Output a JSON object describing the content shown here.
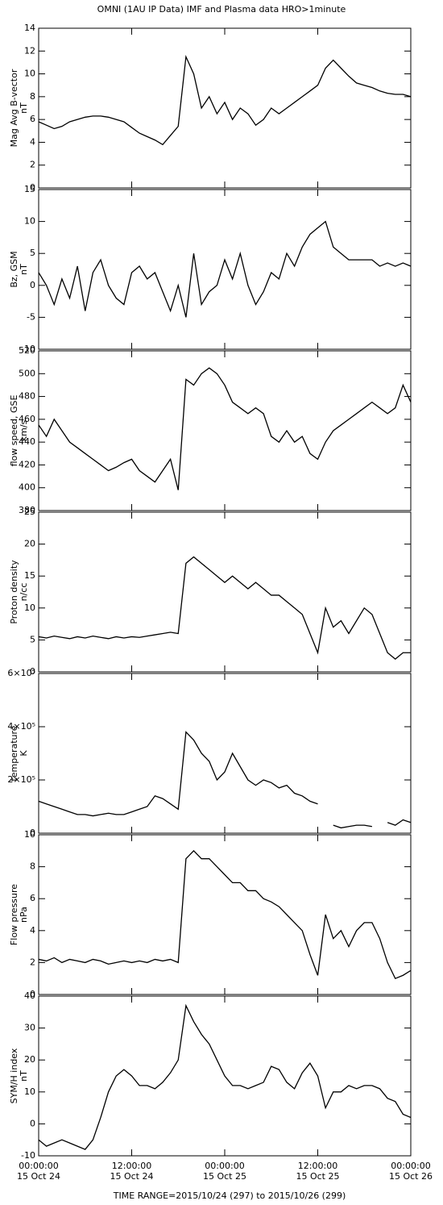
{
  "title": "OMNI (1AU IP Data)  IMF and Plasma data  HRO>1minute",
  "footnote": "TIME RANGE=2015/10/24 (297) to 2015/10/26 (299)",
  "chart_data": [
    {
      "type": "line",
      "ylabel": [
        "Mag Avg B-vector",
        "nT"
      ],
      "color": "#000000",
      "x": [
        "2015-10-24T00:00",
        "2015-10-24T01:00",
        "2015-10-24T02:00",
        "2015-10-24T03:00",
        "2015-10-24T04:00",
        "2015-10-24T05:00",
        "2015-10-24T06:00",
        "2015-10-24T07:00",
        "2015-10-24T08:00",
        "2015-10-24T09:00",
        "2015-10-24T10:00",
        "2015-10-24T11:00",
        "2015-10-24T12:00",
        "2015-10-24T13:00",
        "2015-10-24T14:00",
        "2015-10-24T15:00",
        "2015-10-24T16:00",
        "2015-10-24T17:00",
        "2015-10-24T18:00",
        "2015-10-24T19:00",
        "2015-10-24T20:00",
        "2015-10-24T21:00",
        "2015-10-24T22:00",
        "2015-10-24T23:00",
        "2015-10-25T00:00",
        "2015-10-25T01:00",
        "2015-10-25T02:00",
        "2015-10-25T03:00",
        "2015-10-25T04:00",
        "2015-10-25T05:00",
        "2015-10-25T06:00",
        "2015-10-25T07:00",
        "2015-10-25T08:00",
        "2015-10-25T09:00",
        "2015-10-25T10:00",
        "2015-10-25T11:00",
        "2015-10-25T12:00",
        "2015-10-25T13:00",
        "2015-10-25T14:00",
        "2015-10-25T15:00",
        "2015-10-25T16:00",
        "2015-10-25T17:00",
        "2015-10-25T18:00",
        "2015-10-25T19:00",
        "2015-10-25T20:00",
        "2015-10-25T21:00",
        "2015-10-25T22:00",
        "2015-10-25T23:00",
        "2015-10-26T00:00"
      ],
      "values": [
        5.8,
        5.5,
        5.2,
        5.4,
        5.8,
        6.0,
        6.2,
        6.3,
        6.3,
        6.2,
        6.0,
        5.8,
        5.3,
        4.8,
        4.5,
        4.2,
        3.8,
        4.6,
        5.4,
        11.5,
        10.0,
        7.0,
        8.0,
        6.5,
        7.5,
        6.0,
        7.0,
        6.5,
        5.5,
        6.0,
        7.0,
        6.5,
        7.0,
        7.5,
        8.0,
        8.5,
        9.0,
        10.5,
        11.2,
        10.5,
        9.8,
        9.2,
        9.0,
        8.8,
        8.5,
        8.3,
        8.2,
        8.2,
        8.0
      ],
      "xlim": [
        "2015-10-24T00:00",
        "2015-10-26T00:00"
      ],
      "xticks": [
        "2015-10-24T00:00",
        "2015-10-24T12:00",
        "2015-10-25T00:00",
        "2015-10-25T12:00",
        "2015-10-26T00:00"
      ],
      "ylim": [
        0,
        14
      ],
      "yticks": [
        0,
        2,
        4,
        6,
        8,
        10,
        12,
        14
      ]
    },
    {
      "type": "line",
      "ylabel": [
        "Bz, GSM",
        "nT"
      ],
      "color": "#000000",
      "x": [
        "2015-10-24T00:00",
        "2015-10-24T01:00",
        "2015-10-24T02:00",
        "2015-10-24T03:00",
        "2015-10-24T04:00",
        "2015-10-24T05:00",
        "2015-10-24T06:00",
        "2015-10-24T07:00",
        "2015-10-24T08:00",
        "2015-10-24T09:00",
        "2015-10-24T10:00",
        "2015-10-24T11:00",
        "2015-10-24T12:00",
        "2015-10-24T13:00",
        "2015-10-24T14:00",
        "2015-10-24T15:00",
        "2015-10-24T16:00",
        "2015-10-24T17:00",
        "2015-10-24T18:00",
        "2015-10-24T19:00",
        "2015-10-24T20:00",
        "2015-10-24T21:00",
        "2015-10-24T22:00",
        "2015-10-24T23:00",
        "2015-10-25T00:00",
        "2015-10-25T01:00",
        "2015-10-25T02:00",
        "2015-10-25T03:00",
        "2015-10-25T04:00",
        "2015-10-25T05:00",
        "2015-10-25T06:00",
        "2015-10-25T07:00",
        "2015-10-25T08:00",
        "2015-10-25T09:00",
        "2015-10-25T10:00",
        "2015-10-25T11:00",
        "2015-10-25T12:00",
        "2015-10-25T13:00",
        "2015-10-25T14:00",
        "2015-10-25T15:00",
        "2015-10-25T16:00",
        "2015-10-25T17:00",
        "2015-10-25T18:00",
        "2015-10-25T19:00",
        "2015-10-25T20:00",
        "2015-10-25T21:00",
        "2015-10-25T22:00",
        "2015-10-25T23:00",
        "2015-10-26T00:00"
      ],
      "values": [
        2,
        0,
        -3,
        1,
        -2,
        3,
        -4,
        2,
        4,
        0,
        -2,
        -3,
        2,
        3,
        1,
        2,
        -1,
        -4,
        0,
        -5,
        5,
        -3,
        -1,
        0,
        4,
        1,
        5,
        0,
        -3,
        -1,
        2,
        1,
        5,
        3,
        6,
        8,
        9,
        10,
        6,
        5,
        4,
        4,
        4,
        4,
        3,
        3.5,
        3,
        3.5,
        3
      ],
      "xlim": [
        "2015-10-24T00:00",
        "2015-10-26T00:00"
      ],
      "xticks": [
        "2015-10-24T00:00",
        "2015-10-24T12:00",
        "2015-10-25T00:00",
        "2015-10-25T12:00",
        "2015-10-26T00:00"
      ],
      "ylim": [
        -10,
        15
      ],
      "yticks": [
        -10,
        -5,
        0,
        5,
        10,
        15
      ]
    },
    {
      "type": "line",
      "ylabel": [
        "flow speed, GSE",
        "km/s"
      ],
      "color": "#000000",
      "x": [
        "2015-10-24T00:00",
        "2015-10-24T01:00",
        "2015-10-24T02:00",
        "2015-10-24T03:00",
        "2015-10-24T04:00",
        "2015-10-24T05:00",
        "2015-10-24T06:00",
        "2015-10-24T07:00",
        "2015-10-24T08:00",
        "2015-10-24T09:00",
        "2015-10-24T10:00",
        "2015-10-24T11:00",
        "2015-10-24T12:00",
        "2015-10-24T13:00",
        "2015-10-24T14:00",
        "2015-10-24T15:00",
        "2015-10-24T16:00",
        "2015-10-24T17:00",
        "2015-10-24T18:00",
        "2015-10-24T19:00",
        "2015-10-24T20:00",
        "2015-10-24T21:00",
        "2015-10-24T22:00",
        "2015-10-24T23:00",
        "2015-10-25T00:00",
        "2015-10-25T01:00",
        "2015-10-25T02:00",
        "2015-10-25T03:00",
        "2015-10-25T04:00",
        "2015-10-25T05:00",
        "2015-10-25T06:00",
        "2015-10-25T07:00",
        "2015-10-25T08:00",
        "2015-10-25T09:00",
        "2015-10-25T10:00",
        "2015-10-25T11:00",
        "2015-10-25T12:00",
        "2015-10-25T13:00",
        "2015-10-25T14:00",
        "2015-10-25T15:00",
        "2015-10-25T16:00",
        "2015-10-25T17:00",
        "2015-10-25T18:00",
        "2015-10-25T19:00",
        "2015-10-25T20:00",
        "2015-10-25T21:00",
        "2015-10-25T22:00",
        "2015-10-25T23:00",
        "2015-10-26T00:00"
      ],
      "values": [
        455,
        445,
        460,
        450,
        440,
        435,
        430,
        425,
        420,
        415,
        418,
        422,
        425,
        415,
        410,
        405,
        415,
        425,
        398,
        495,
        490,
        500,
        505,
        500,
        490,
        475,
        470,
        465,
        470,
        465,
        445,
        440,
        450,
        440,
        445,
        430,
        425,
        440,
        450,
        455,
        460,
        465,
        470,
        475,
        470,
        465,
        470,
        490,
        475
      ],
      "xlim": [
        "2015-10-24T00:00",
        "2015-10-26T00:00"
      ],
      "xticks": [
        "2015-10-24T00:00",
        "2015-10-24T12:00",
        "2015-10-25T00:00",
        "2015-10-25T12:00",
        "2015-10-26T00:00"
      ],
      "ylim": [
        380,
        520
      ],
      "yticks": [
        380,
        400,
        420,
        440,
        460,
        480,
        500,
        520
      ]
    },
    {
      "type": "line",
      "ylabel": [
        "Proton density",
        "n/cc"
      ],
      "color": "#000000",
      "x": [
        "2015-10-24T00:00",
        "2015-10-24T01:00",
        "2015-10-24T02:00",
        "2015-10-24T03:00",
        "2015-10-24T04:00",
        "2015-10-24T05:00",
        "2015-10-24T06:00",
        "2015-10-24T07:00",
        "2015-10-24T08:00",
        "2015-10-24T09:00",
        "2015-10-24T10:00",
        "2015-10-24T11:00",
        "2015-10-24T12:00",
        "2015-10-24T13:00",
        "2015-10-24T14:00",
        "2015-10-24T15:00",
        "2015-10-24T16:00",
        "2015-10-24T17:00",
        "2015-10-24T18:00",
        "2015-10-24T19:00",
        "2015-10-24T20:00",
        "2015-10-24T21:00",
        "2015-10-24T22:00",
        "2015-10-24T23:00",
        "2015-10-25T00:00",
        "2015-10-25T01:00",
        "2015-10-25T02:00",
        "2015-10-25T03:00",
        "2015-10-25T04:00",
        "2015-10-25T05:00",
        "2015-10-25T06:00",
        "2015-10-25T07:00",
        "2015-10-25T08:00",
        "2015-10-25T09:00",
        "2015-10-25T10:00",
        "2015-10-25T11:00",
        "2015-10-25T12:00",
        "2015-10-25T13:00",
        "2015-10-25T14:00",
        "2015-10-25T15:00",
        "2015-10-25T16:00",
        "2015-10-25T17:00",
        "2015-10-25T18:00",
        "2015-10-25T19:00",
        "2015-10-25T20:00",
        "2015-10-25T21:00",
        "2015-10-25T22:00",
        "2015-10-25T23:00",
        "2015-10-26T00:00"
      ],
      "values": [
        5.5,
        5.3,
        5.6,
        5.4,
        5.2,
        5.5,
        5.3,
        5.6,
        5.4,
        5.2,
        5.5,
        5.3,
        5.5,
        5.4,
        5.6,
        5.8,
        6.0,
        6.2,
        6.0,
        17,
        18,
        17,
        16,
        15,
        14,
        15,
        14,
        13,
        14,
        13,
        12,
        12,
        11,
        10,
        9,
        6,
        3,
        10,
        7,
        8,
        6,
        8,
        10,
        9,
        6,
        3,
        2,
        3,
        3
      ],
      "xlim": [
        "2015-10-24T00:00",
        "2015-10-26T00:00"
      ],
      "xticks": [
        "2015-10-24T00:00",
        "2015-10-24T12:00",
        "2015-10-25T00:00",
        "2015-10-25T12:00",
        "2015-10-26T00:00"
      ],
      "ylim": [
        0,
        25
      ],
      "yticks": [
        0,
        5,
        10,
        15,
        20,
        25
      ]
    },
    {
      "type": "line",
      "ylabel": [
        "temperature",
        "K"
      ],
      "color": "#000000",
      "x": [
        "2015-10-24T00:00",
        "2015-10-24T01:00",
        "2015-10-24T02:00",
        "2015-10-24T03:00",
        "2015-10-24T04:00",
        "2015-10-24T05:00",
        "2015-10-24T06:00",
        "2015-10-24T07:00",
        "2015-10-24T08:00",
        "2015-10-24T09:00",
        "2015-10-24T10:00",
        "2015-10-24T11:00",
        "2015-10-24T12:00",
        "2015-10-24T13:00",
        "2015-10-24T14:00",
        "2015-10-24T15:00",
        "2015-10-24T16:00",
        "2015-10-24T17:00",
        "2015-10-24T18:00",
        "2015-10-24T19:00",
        "2015-10-24T20:00",
        "2015-10-24T21:00",
        "2015-10-24T22:00",
        "2015-10-24T23:00",
        "2015-10-25T00:00",
        "2015-10-25T01:00",
        "2015-10-25T02:00",
        "2015-10-25T03:00",
        "2015-10-25T04:00",
        "2015-10-25T05:00",
        "2015-10-25T06:00",
        "2015-10-25T07:00",
        "2015-10-25T08:00",
        "2015-10-25T09:00",
        "2015-10-25T10:00",
        "2015-10-25T11:00",
        "2015-10-25T12:00",
        "2015-10-25T13:00",
        "2015-10-25T14:00",
        "2015-10-25T15:00",
        "2015-10-25T16:00",
        "2015-10-25T17:00",
        "2015-10-25T18:00",
        "2015-10-25T19:00",
        "2015-10-25T20:00",
        "2015-10-25T21:00",
        "2015-10-25T22:00",
        "2015-10-25T23:00",
        "2015-10-26T00:00"
      ],
      "values": [
        120000,
        110000,
        100000,
        90000,
        80000,
        70000,
        70000,
        65000,
        70000,
        75000,
        70000,
        70000,
        80000,
        90000,
        100000,
        140000,
        130000,
        110000,
        90000,
        380000,
        350000,
        300000,
        270000,
        200000,
        230000,
        300000,
        250000,
        200000,
        180000,
        200000,
        190000,
        170000,
        180000,
        150000,
        140000,
        120000,
        110000,
        null,
        30000,
        20000,
        25000,
        30000,
        30000,
        25000,
        null,
        40000,
        30000,
        50000,
        40000
      ],
      "xlim": [
        "2015-10-24T00:00",
        "2015-10-26T00:00"
      ],
      "xticks": [
        "2015-10-24T00:00",
        "2015-10-24T12:00",
        "2015-10-25T00:00",
        "2015-10-25T12:00",
        "2015-10-26T00:00"
      ],
      "ylim": [
        0,
        600000
      ],
      "yticks": [
        0,
        {
          "value": 200000,
          "label": "2×10⁵"
        },
        {
          "value": 400000,
          "label": "4×10⁵"
        },
        {
          "value": 600000,
          "label": "6×10⁵"
        }
      ]
    },
    {
      "type": "line",
      "ylabel": [
        "Flow pressure",
        "nPa"
      ],
      "color": "#000000",
      "x": [
        "2015-10-24T00:00",
        "2015-10-24T01:00",
        "2015-10-24T02:00",
        "2015-10-24T03:00",
        "2015-10-24T04:00",
        "2015-10-24T05:00",
        "2015-10-24T06:00",
        "2015-10-24T07:00",
        "2015-10-24T08:00",
        "2015-10-24T09:00",
        "2015-10-24T10:00",
        "2015-10-24T11:00",
        "2015-10-24T12:00",
        "2015-10-24T13:00",
        "2015-10-24T14:00",
        "2015-10-24T15:00",
        "2015-10-24T16:00",
        "2015-10-24T17:00",
        "2015-10-24T18:00",
        "2015-10-24T19:00",
        "2015-10-24T20:00",
        "2015-10-24T21:00",
        "2015-10-24T22:00",
        "2015-10-24T23:00",
        "2015-10-25T00:00",
        "2015-10-25T01:00",
        "2015-10-25T02:00",
        "2015-10-25T03:00",
        "2015-10-25T04:00",
        "2015-10-25T05:00",
        "2015-10-25T06:00",
        "2015-10-25T07:00",
        "2015-10-25T08:00",
        "2015-10-25T09:00",
        "2015-10-25T10:00",
        "2015-10-25T11:00",
        "2015-10-25T12:00",
        "2015-10-25T13:00",
        "2015-10-25T14:00",
        "2015-10-25T15:00",
        "2015-10-25T16:00",
        "2015-10-25T17:00",
        "2015-10-25T18:00",
        "2015-10-25T19:00",
        "2015-10-25T20:00",
        "2015-10-25T21:00",
        "2015-10-25T22:00",
        "2015-10-25T23:00",
        "2015-10-26T00:00"
      ],
      "values": [
        2.2,
        2.1,
        2.3,
        2.0,
        2.2,
        2.1,
        2.0,
        2.2,
        2.1,
        1.9,
        2.0,
        2.1,
        2.0,
        2.1,
        2.0,
        2.2,
        2.1,
        2.2,
        2.0,
        8.5,
        9,
        8.5,
        8.5,
        8,
        7.5,
        7,
        7,
        6.5,
        6.5,
        6,
        5.8,
        5.5,
        5,
        4.5,
        4,
        2.5,
        1.2,
        5,
        3.5,
        4,
        3,
        4,
        4.5,
        4.5,
        3.5,
        2,
        1,
        1.2,
        1.5
      ],
      "xlim": [
        "2015-10-24T00:00",
        "2015-10-26T00:00"
      ],
      "xticks": [
        "2015-10-24T00:00",
        "2015-10-24T12:00",
        "2015-10-25T00:00",
        "2015-10-25T12:00",
        "2015-10-26T00:00"
      ],
      "ylim": [
        0,
        10
      ],
      "yticks": [
        0,
        2,
        4,
        6,
        8,
        10
      ]
    },
    {
      "type": "line",
      "ylabel": [
        "SYM/H index",
        "nT"
      ],
      "color": "#000000",
      "x": [
        "2015-10-24T00:00",
        "2015-10-24T01:00",
        "2015-10-24T02:00",
        "2015-10-24T03:00",
        "2015-10-24T04:00",
        "2015-10-24T05:00",
        "2015-10-24T06:00",
        "2015-10-24T07:00",
        "2015-10-24T08:00",
        "2015-10-24T09:00",
        "2015-10-24T10:00",
        "2015-10-24T11:00",
        "2015-10-24T12:00",
        "2015-10-24T13:00",
        "2015-10-24T14:00",
        "2015-10-24T15:00",
        "2015-10-24T16:00",
        "2015-10-24T17:00",
        "2015-10-24T18:00",
        "2015-10-24T19:00",
        "2015-10-24T20:00",
        "2015-10-24T21:00",
        "2015-10-24T22:00",
        "2015-10-24T23:00",
        "2015-10-25T00:00",
        "2015-10-25T01:00",
        "2015-10-25T02:00",
        "2015-10-25T03:00",
        "2015-10-25T04:00",
        "2015-10-25T05:00",
        "2015-10-25T06:00",
        "2015-10-25T07:00",
        "2015-10-25T08:00",
        "2015-10-25T09:00",
        "2015-10-25T10:00",
        "2015-10-25T11:00",
        "2015-10-25T12:00",
        "2015-10-25T13:00",
        "2015-10-25T14:00",
        "2015-10-25T15:00",
        "2015-10-25T16:00",
        "2015-10-25T17:00",
        "2015-10-25T18:00",
        "2015-10-25T19:00",
        "2015-10-25T20:00",
        "2015-10-25T21:00",
        "2015-10-25T22:00",
        "2015-10-25T23:00",
        "2015-10-26T00:00"
      ],
      "values": [
        -5,
        -7,
        -6,
        -5,
        -6,
        -7,
        -8,
        -5,
        2,
        10,
        15,
        17,
        15,
        12,
        12,
        11,
        13,
        16,
        20,
        37,
        32,
        28,
        25,
        20,
        15,
        12,
        12,
        11,
        12,
        13,
        18,
        17,
        13,
        11,
        16,
        19,
        15,
        5,
        10,
        10,
        12,
        11,
        12,
        12,
        11,
        8,
        7,
        3,
        2
      ],
      "xlim": [
        "2015-10-24T00:00",
        "2015-10-26T00:00"
      ],
      "xticks": [
        {
          "value": "2015-10-24T00:00",
          "label": "00:00:00\n15 Oct 24"
        },
        {
          "value": "2015-10-24T12:00",
          "label": "12:00:00\n15 Oct 24"
        },
        {
          "value": "2015-10-25T00:00",
          "label": "00:00:00\n15 Oct 25"
        },
        {
          "value": "2015-10-25T12:00",
          "label": "12:00:00\n15 Oct 25"
        },
        {
          "value": "2015-10-26T00:00",
          "label": "00:00:00\n15 Oct 26"
        }
      ],
      "ylim": [
        -10,
        40
      ],
      "yticks": [
        -10,
        0,
        10,
        20,
        30,
        40
      ]
    }
  ]
}
